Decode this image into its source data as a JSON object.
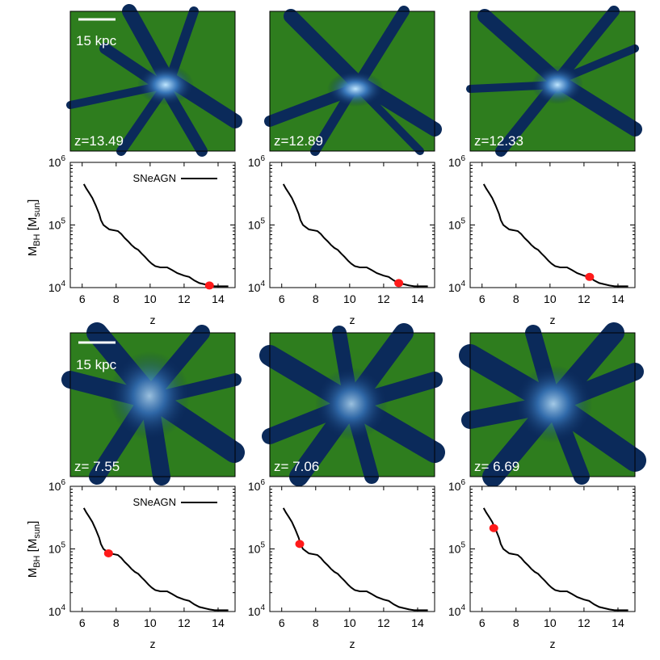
{
  "figure": {
    "rows": [
      {
        "scale_bar_label": "15 kpc",
        "legend_label": "SNeAGN",
        "snapshots": [
          {
            "z_label": "z=13.49"
          },
          {
            "z_label": "z=12.89"
          },
          {
            "z_label": "z=12.33"
          }
        ]
      },
      {
        "scale_bar_label": "15 kpc",
        "legend_label": "SNeAGN",
        "snapshots": [
          {
            "z_label": "z= 7.55"
          },
          {
            "z_label": "z= 7.06"
          },
          {
            "z_label": "z= 6.69"
          }
        ]
      }
    ],
    "colors": {
      "image_background": "#2e7d1e",
      "filament": "#0b2a5a",
      "filament_bright": "#8fd0ff",
      "marker": "#ff1a1a",
      "line": "#000000"
    }
  },
  "chart_data": [
    {
      "type": "line",
      "panels": 6,
      "xlabel": "z",
      "ylabel": "M_BH [M_sun]",
      "xlim": [
        5.3,
        15
      ],
      "ylim": [
        10000,
        1000000
      ],
      "yscale": "log",
      "xticks": [
        "6",
        "8",
        "10",
        "12",
        "14"
      ],
      "yticks": [
        "10^4",
        "10^5",
        "10^6"
      ],
      "series": [
        {
          "name": "SNeAGN",
          "points": [
            [
              6.1,
              450000
            ],
            [
              6.25,
              380000
            ],
            [
              6.4,
              330000
            ],
            [
              6.6,
              270000
            ],
            [
              6.8,
              205000
            ],
            [
              7.0,
              150000
            ],
            [
              7.1,
              120000
            ],
            [
              7.25,
              100000
            ],
            [
              7.4,
              93000
            ],
            [
              7.6,
              85000
            ],
            [
              7.9,
              82000
            ],
            [
              8.1,
              80000
            ],
            [
              8.3,
              72000
            ],
            [
              8.5,
              62000
            ],
            [
              8.7,
              55000
            ],
            [
              8.9,
              48000
            ],
            [
              9.1,
              43000
            ],
            [
              9.3,
              40000
            ],
            [
              9.5,
              35000
            ],
            [
              9.7,
              31000
            ],
            [
              9.9,
              27000
            ],
            [
              10.1,
              24000
            ],
            [
              10.3,
              22000
            ],
            [
              10.6,
              21000
            ],
            [
              11.0,
              21000
            ],
            [
              11.3,
              19000
            ],
            [
              11.6,
              17000
            ],
            [
              12.0,
              15500
            ],
            [
              12.3,
              14800
            ],
            [
              12.6,
              13000
            ],
            [
              12.9,
              11800
            ],
            [
              13.2,
              11300
            ],
            [
              13.5,
              10800
            ],
            [
              13.8,
              10500
            ],
            [
              14.2,
              10500
            ],
            [
              14.6,
              10500
            ]
          ]
        }
      ],
      "markers": [
        {
          "panel": 1,
          "z": 13.49,
          "m": 10800
        },
        {
          "panel": 2,
          "z": 12.89,
          "m": 11800
        },
        {
          "panel": 3,
          "z": 12.33,
          "m": 14800
        },
        {
          "panel": 4,
          "z": 7.55,
          "m": 85000
        },
        {
          "panel": 5,
          "z": 7.06,
          "m": 120000
        },
        {
          "panel": 6,
          "z": 6.69,
          "m": 215000
        }
      ]
    }
  ]
}
